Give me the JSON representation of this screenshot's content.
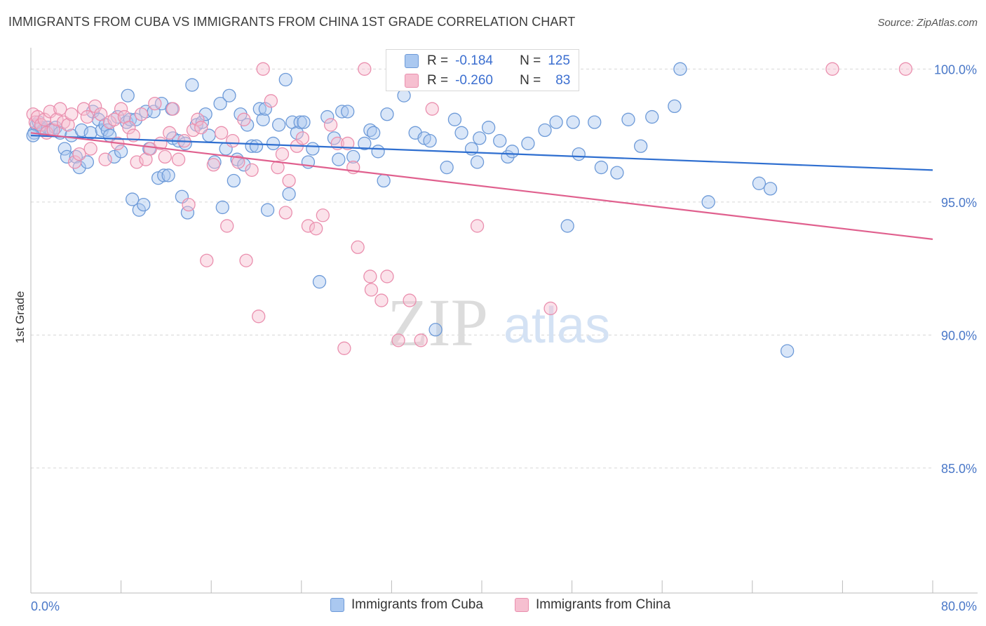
{
  "title": "IMMIGRANTS FROM CUBA VS IMMIGRANTS FROM CHINA 1ST GRADE CORRELATION CHART",
  "source": "Source: ZipAtlas.com",
  "watermark": {
    "zip": "ZIP",
    "atlas": "atlas"
  },
  "stats": {
    "r_label": "R =",
    "n_label": "N =",
    "cuba": {
      "r": "-0.184",
      "n": "125"
    },
    "china": {
      "r": "-0.260",
      "n": "83"
    }
  },
  "colors": {
    "cuba_fill": "#aac8f0",
    "cuba_stroke": "#6d9ad8",
    "cuba_line": "#2f6fd0",
    "china_fill": "#f6bfd0",
    "china_stroke": "#ea8fae",
    "china_line": "#e0608e",
    "tick_text": "#4a78c8",
    "grid": "#d6d6d6"
  },
  "chart_data": {
    "type": "scatter",
    "ylabel": "1st Grade",
    "xlim": [
      0,
      80
    ],
    "ylim": [
      80.3,
      100.8
    ],
    "x_tick_labels": [
      {
        "value": 0,
        "label": "0.0%"
      },
      {
        "value": 80,
        "label": "80.0%"
      }
    ],
    "y_ticks": [
      {
        "value": 100,
        "label": "100.0%"
      },
      {
        "value": 95,
        "label": "95.0%"
      },
      {
        "value": 90,
        "label": "90.0%"
      },
      {
        "value": 85,
        "label": "85.0%"
      }
    ],
    "x_minor_ticks": [
      8,
      16,
      24,
      32,
      40,
      48,
      56,
      64,
      72,
      80
    ],
    "grid": "horizontal dashed",
    "legend_placement": "bottom",
    "series": [
      {
        "name": "Immigrants from Cuba",
        "trend": {
          "x": [
            0,
            80
          ],
          "y": [
            97.5,
            96.2
          ]
        },
        "points": [
          [
            0.3,
            97.6
          ],
          [
            0.5,
            97.9
          ],
          [
            0.7,
            98.0
          ],
          [
            0.9,
            97.8
          ],
          [
            1.1,
            97.7
          ],
          [
            1.5,
            97.8
          ],
          [
            1.8,
            97.7
          ],
          [
            2.2,
            97.8
          ],
          [
            2.6,
            97.6
          ],
          [
            3.0,
            97.0
          ],
          [
            3.2,
            96.7
          ],
          [
            3.6,
            97.5
          ],
          [
            4.0,
            96.7
          ],
          [
            4.3,
            96.3
          ],
          [
            4.5,
            97.7
          ],
          [
            5.0,
            96.5
          ],
          [
            5.3,
            97.6
          ],
          [
            5.5,
            98.4
          ],
          [
            6.0,
            98.1
          ],
          [
            6.3,
            97.7
          ],
          [
            6.6,
            97.9
          ],
          [
            6.8,
            97.7
          ],
          [
            7.0,
            97.5
          ],
          [
            7.4,
            96.7
          ],
          [
            7.7,
            98.2
          ],
          [
            8.0,
            96.9
          ],
          [
            8.5,
            98.0
          ],
          [
            8.6,
            99.0
          ],
          [
            8.8,
            98.1
          ],
          [
            9.0,
            95.1
          ],
          [
            9.3,
            98.1
          ],
          [
            9.6,
            94.7
          ],
          [
            10.0,
            94.9
          ],
          [
            10.2,
            98.4
          ],
          [
            10.5,
            97.0
          ],
          [
            10.9,
            98.4
          ],
          [
            11.3,
            95.9
          ],
          [
            11.8,
            96.0
          ],
          [
            11.6,
            98.7
          ],
          [
            12.2,
            96.0
          ],
          [
            12.5,
            98.5
          ],
          [
            12.6,
            97.4
          ],
          [
            13.1,
            97.3
          ],
          [
            13.4,
            95.2
          ],
          [
            13.7,
            97.2
          ],
          [
            13.9,
            94.6
          ],
          [
            14.3,
            99.4
          ],
          [
            14.7,
            97.9
          ],
          [
            15.2,
            98.0
          ],
          [
            15.5,
            98.3
          ],
          [
            15.8,
            97.5
          ],
          [
            16.3,
            96.5
          ],
          [
            16.8,
            98.7
          ],
          [
            17.0,
            94.8
          ],
          [
            17.3,
            97.0
          ],
          [
            17.6,
            99.0
          ],
          [
            18.0,
            95.8
          ],
          [
            18.3,
            96.6
          ],
          [
            18.6,
            98.3
          ],
          [
            18.9,
            96.4
          ],
          [
            19.2,
            97.9
          ],
          [
            19.6,
            97.1
          ],
          [
            20.0,
            97.1
          ],
          [
            20.3,
            98.5
          ],
          [
            20.6,
            98.1
          ],
          [
            20.8,
            98.5
          ],
          [
            21.0,
            94.7
          ],
          [
            21.5,
            97.2
          ],
          [
            22.0,
            97.9
          ],
          [
            22.6,
            99.6
          ],
          [
            22.9,
            95.3
          ],
          [
            23.2,
            98.0
          ],
          [
            23.6,
            97.6
          ],
          [
            23.9,
            98.0
          ],
          [
            24.2,
            98.0
          ],
          [
            24.6,
            96.5
          ],
          [
            25.0,
            97.0
          ],
          [
            25.6,
            92.0
          ],
          [
            26.3,
            98.2
          ],
          [
            26.9,
            97.4
          ],
          [
            27.3,
            96.6
          ],
          [
            27.6,
            98.4
          ],
          [
            28.1,
            98.4
          ],
          [
            28.6,
            96.7
          ],
          [
            29.6,
            97.2
          ],
          [
            30.1,
            97.7
          ],
          [
            30.4,
            97.6
          ],
          [
            30.8,
            96.9
          ],
          [
            31.3,
            95.8
          ],
          [
            31.6,
            98.3
          ],
          [
            32.2,
            100.0
          ],
          [
            33.1,
            99.0
          ],
          [
            34.1,
            97.6
          ],
          [
            34.9,
            97.4
          ],
          [
            35.4,
            97.3
          ],
          [
            35.9,
            90.2
          ],
          [
            36.9,
            96.3
          ],
          [
            37.6,
            98.1
          ],
          [
            38.2,
            97.6
          ],
          [
            39.1,
            97.0
          ],
          [
            39.6,
            96.5
          ],
          [
            39.8,
            97.4
          ],
          [
            40.6,
            97.8
          ],
          [
            41.6,
            97.3
          ],
          [
            42.3,
            96.7
          ],
          [
            42.7,
            96.9
          ],
          [
            44.1,
            97.2
          ],
          [
            45.6,
            97.7
          ],
          [
            46.6,
            98.0
          ],
          [
            47.6,
            94.1
          ],
          [
            48.1,
            98.0
          ],
          [
            48.6,
            96.8
          ],
          [
            50.0,
            98.0
          ],
          [
            50.6,
            96.3
          ],
          [
            52.0,
            96.1
          ],
          [
            53.0,
            98.1
          ],
          [
            54.1,
            97.1
          ],
          [
            55.1,
            98.2
          ],
          [
            57.1,
            98.6
          ],
          [
            57.6,
            100.0
          ],
          [
            60.1,
            95.0
          ],
          [
            64.6,
            95.7
          ],
          [
            65.6,
            95.5
          ],
          [
            67.1,
            89.4
          ],
          [
            0.2,
            97.5
          ]
        ]
      },
      {
        "name": "Immigrants from China",
        "trend": {
          "x": [
            0,
            80
          ],
          "y": [
            97.6,
            93.6
          ]
        },
        "points": [
          [
            0.2,
            98.3
          ],
          [
            0.4,
            98.0
          ],
          [
            0.6,
            98.2
          ],
          [
            0.9,
            97.9
          ],
          [
            1.2,
            98.1
          ],
          [
            1.4,
            97.6
          ],
          [
            1.7,
            98.4
          ],
          [
            2.0,
            97.7
          ],
          [
            2.3,
            98.1
          ],
          [
            2.6,
            98.5
          ],
          [
            2.9,
            98.0
          ],
          [
            3.3,
            97.9
          ],
          [
            3.6,
            98.3
          ],
          [
            3.9,
            96.5
          ],
          [
            4.3,
            96.8
          ],
          [
            4.7,
            98.5
          ],
          [
            5.0,
            98.2
          ],
          [
            5.3,
            97.0
          ],
          [
            5.7,
            98.6
          ],
          [
            6.2,
            98.3
          ],
          [
            6.6,
            96.6
          ],
          [
            7.0,
            98.0
          ],
          [
            7.4,
            98.1
          ],
          [
            7.7,
            97.2
          ],
          [
            8.0,
            98.5
          ],
          [
            8.3,
            98.2
          ],
          [
            8.7,
            97.8
          ],
          [
            9.1,
            97.5
          ],
          [
            9.4,
            96.5
          ],
          [
            9.8,
            98.3
          ],
          [
            10.2,
            96.6
          ],
          [
            10.6,
            97.0
          ],
          [
            11.0,
            98.7
          ],
          [
            11.5,
            97.2
          ],
          [
            11.9,
            96.7
          ],
          [
            12.3,
            97.6
          ],
          [
            12.6,
            98.5
          ],
          [
            13.1,
            96.6
          ],
          [
            13.6,
            97.3
          ],
          [
            14.0,
            94.9
          ],
          [
            14.4,
            97.7
          ],
          [
            14.8,
            98.1
          ],
          [
            15.1,
            97.8
          ],
          [
            15.6,
            92.8
          ],
          [
            16.2,
            96.4
          ],
          [
            16.9,
            97.6
          ],
          [
            17.4,
            94.1
          ],
          [
            17.9,
            97.3
          ],
          [
            18.4,
            96.5
          ],
          [
            18.9,
            98.1
          ],
          [
            19.1,
            92.8
          ],
          [
            19.6,
            96.2
          ],
          [
            20.2,
            90.7
          ],
          [
            20.6,
            100.0
          ],
          [
            21.3,
            98.8
          ],
          [
            21.9,
            96.3
          ],
          [
            22.3,
            96.8
          ],
          [
            22.6,
            94.6
          ],
          [
            22.9,
            95.8
          ],
          [
            23.6,
            97.1
          ],
          [
            24.1,
            97.4
          ],
          [
            24.6,
            94.1
          ],
          [
            25.3,
            94.0
          ],
          [
            25.9,
            94.5
          ],
          [
            26.6,
            97.9
          ],
          [
            27.2,
            97.2
          ],
          [
            27.8,
            89.5
          ],
          [
            28.1,
            97.2
          ],
          [
            28.6,
            96.3
          ],
          [
            29.0,
            93.3
          ],
          [
            29.6,
            100.0
          ],
          [
            30.1,
            92.2
          ],
          [
            31.1,
            91.3
          ],
          [
            31.6,
            92.2
          ],
          [
            32.6,
            89.8
          ],
          [
            33.6,
            91.3
          ],
          [
            34.6,
            89.8
          ],
          [
            35.6,
            98.5
          ],
          [
            39.6,
            94.1
          ],
          [
            46.1,
            91.0
          ],
          [
            71.1,
            100.0
          ],
          [
            77.6,
            100.0
          ],
          [
            30.2,
            91.7
          ]
        ]
      }
    ]
  },
  "legend": {
    "cuba": "Immigrants from Cuba",
    "china": "Immigrants from China"
  }
}
